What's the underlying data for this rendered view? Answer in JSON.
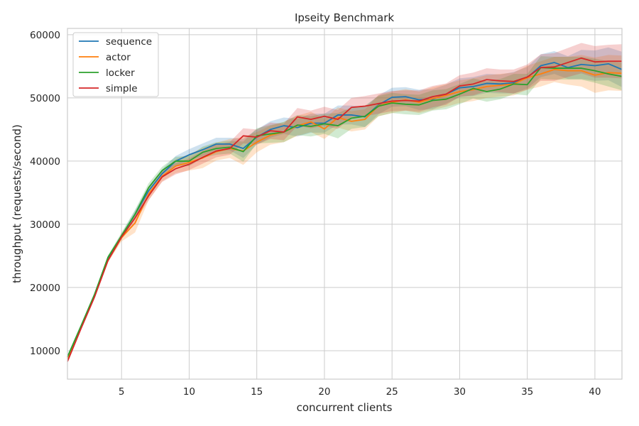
{
  "chart_data": {
    "type": "line",
    "title": "Ipseity Benchmark",
    "xlabel": "concurrent clients",
    "ylabel": "throughput (requests/second)",
    "xlim": [
      1,
      42
    ],
    "ylim": [
      5500,
      61000
    ],
    "xticks": [
      5,
      10,
      15,
      20,
      25,
      30,
      35,
      40
    ],
    "yticks": [
      10000,
      20000,
      30000,
      40000,
      50000,
      60000
    ],
    "grid": true,
    "legend_position": "top-left",
    "confidence_bands": true,
    "x": [
      1,
      2,
      3,
      4,
      5,
      6,
      7,
      8,
      9,
      10,
      11,
      12,
      13,
      14,
      15,
      16,
      17,
      18,
      19,
      20,
      21,
      22,
      23,
      24,
      25,
      26,
      27,
      28,
      29,
      30,
      31,
      32,
      33,
      34,
      35,
      36,
      37,
      38,
      39,
      40,
      41,
      42
    ],
    "series": [
      {
        "name": "sequence",
        "color": "#1f77b4",
        "values": [
          9000,
          13800,
          18800,
          24600,
          28100,
          31600,
          35300,
          38000,
          40000,
          41000,
          41800,
          42700,
          42700,
          42000,
          43800,
          45000,
          45600,
          45300,
          46000,
          46000,
          47300,
          47300,
          47000,
          48900,
          50100,
          50200,
          49700,
          49800,
          50600,
          51600,
          51800,
          52300,
          52200,
          52400,
          53200,
          55100,
          55600,
          54800,
          55300,
          55100,
          55400,
          54500
        ],
        "band": [
          300,
          300,
          300,
          300,
          400,
          600,
          700,
          700,
          800,
          900,
          1000,
          1000,
          1000,
          1500,
          1200,
          1300,
          1300,
          1400,
          1500,
          1500,
          1500,
          1500,
          1600,
          1500,
          1500,
          1500,
          1600,
          1600,
          1500,
          1500,
          1500,
          1500,
          1500,
          1700,
          1700,
          1800,
          1800,
          1800,
          2300,
          2400,
          2600,
          2800
        ]
      },
      {
        "name": "actor",
        "color": "#ff7f0e",
        "values": [
          8800,
          13600,
          18600,
          24300,
          27900,
          30200,
          34800,
          37600,
          39200,
          39800,
          40500,
          41500,
          42000,
          41600,
          43000,
          44100,
          44600,
          45600,
          46200,
          45100,
          46900,
          46300,
          46600,
          48800,
          49300,
          49700,
          49300,
          49900,
          50400,
          51000,
          51300,
          51800,
          52000,
          52200,
          53200,
          53800,
          54500,
          54300,
          54300,
          53600,
          54000,
          53900
        ],
        "band": [
          300,
          300,
          300,
          300,
          600,
          1500,
          1000,
          800,
          1100,
          1300,
          1600,
          1400,
          1500,
          2200,
          1600,
          1500,
          1600,
          1600,
          1600,
          1600,
          1600,
          1600,
          1600,
          1700,
          1700,
          1700,
          1700,
          1800,
          1800,
          1800,
          1800,
          1800,
          1800,
          1800,
          1900,
          2000,
          2000,
          2200,
          2500,
          2800,
          2800,
          2800
        ]
      },
      {
        "name": "locker",
        "color": "#2ca02c",
        "values": [
          9000,
          13900,
          18900,
          24800,
          28200,
          31600,
          35800,
          38500,
          40000,
          40000,
          41400,
          42000,
          42200,
          41500,
          44000,
          44300,
          44600,
          45700,
          45500,
          45900,
          45600,
          46800,
          47100,
          48700,
          49200,
          49000,
          48900,
          49600,
          49800,
          50600,
          51500,
          51000,
          51400,
          52200,
          52100,
          54800,
          54700,
          54700,
          54700,
          54300,
          53800,
          53400
        ],
        "band": [
          300,
          300,
          300,
          300,
          500,
          700,
          700,
          600,
          700,
          800,
          900,
          1000,
          1000,
          1600,
          1200,
          1400,
          1600,
          1600,
          1600,
          1600,
          2000,
          1700,
          1700,
          1600,
          1600,
          1600,
          1600,
          1600,
          1600,
          1600,
          1600,
          1600,
          1600,
          1600,
          1700,
          1800,
          1800,
          1800,
          1800,
          1900,
          2000,
          2200
        ]
      },
      {
        "name": "simple",
        "color": "#d62728",
        "values": [
          8300,
          13500,
          18500,
          24300,
          28000,
          31000,
          34500,
          37500,
          38800,
          39500,
          40600,
          41600,
          42000,
          44000,
          43800,
          44800,
          44600,
          47000,
          46600,
          47100,
          46600,
          48500,
          48700,
          49100,
          49500,
          49600,
          49500,
          50200,
          50600,
          51900,
          52200,
          52900,
          52700,
          52600,
          53300,
          54800,
          54900,
          55600,
          56300,
          55700,
          55800,
          55800
        ],
        "band": [
          300,
          300,
          300,
          300,
          400,
          600,
          700,
          800,
          900,
          900,
          1000,
          1000,
          1000,
          1200,
          1200,
          1300,
          1300,
          1400,
          1400,
          1500,
          1500,
          1500,
          1600,
          1600,
          1600,
          1600,
          1700,
          1700,
          1700,
          1700,
          1800,
          1800,
          1800,
          1900,
          2000,
          2100,
          2200,
          2300,
          2400,
          2500,
          2600,
          2700
        ]
      }
    ]
  }
}
